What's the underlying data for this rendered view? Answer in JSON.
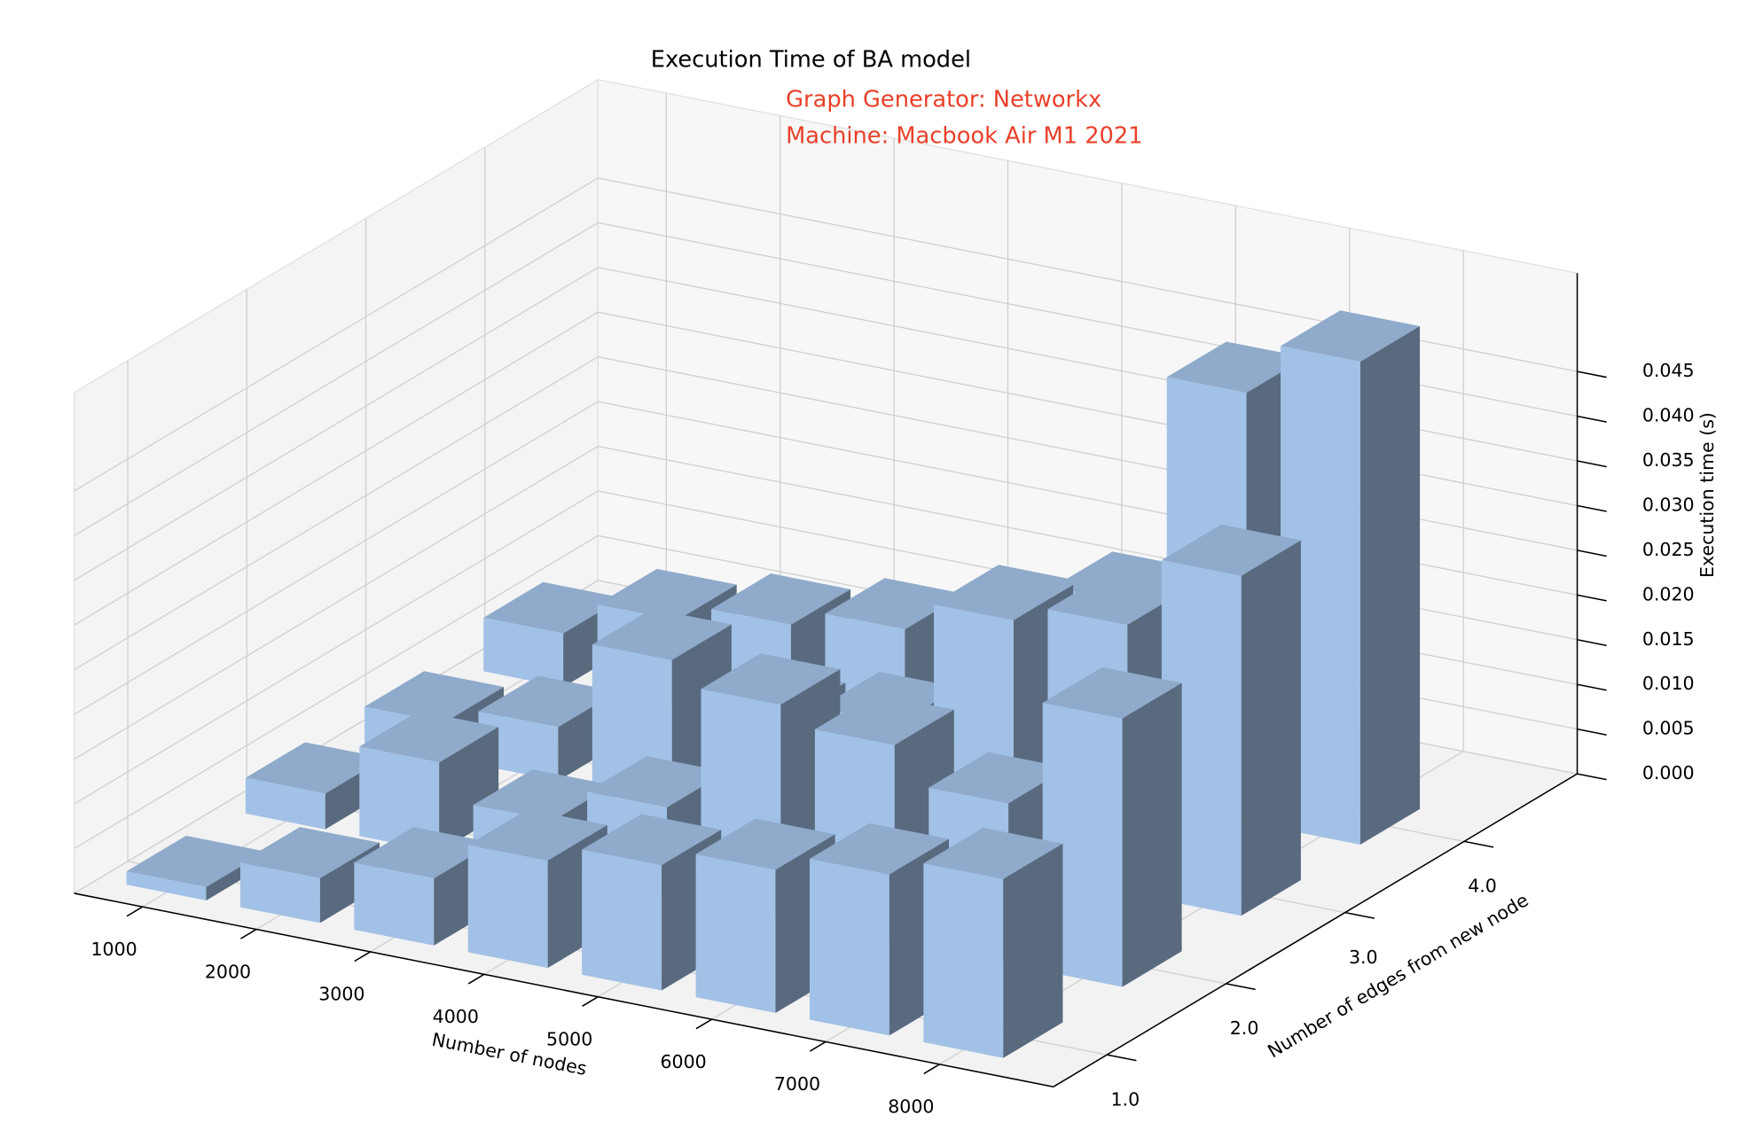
{
  "chart_data": {
    "type": "bar3d",
    "title": "Execution Time of BA model",
    "annotation": [
      "Graph Generator: Networkx",
      "Machine: Macbook Air M1 2021"
    ],
    "annotation_color": "#e8402a",
    "x_label": "Number of nodes",
    "y_label": "Number of edges from new node",
    "z_label": "Execution time (s)",
    "color": "#a2c1e6",
    "x": [
      1000,
      2000,
      3000,
      4000,
      5000,
      6000,
      7000,
      8000
    ],
    "series": [
      {
        "y": 1,
        "values": [
          0.0015,
          0.005,
          0.0075,
          0.012,
          0.014,
          0.016,
          0.018,
          0.02
        ]
      },
      {
        "y": 2,
        "values": [
          0.004,
          0.01,
          0.006,
          0.01,
          0.024,
          0.022,
          0.018,
          0.03
        ]
      },
      {
        "y": 3,
        "values": [
          0.004,
          0.006,
          0.016,
          0.012,
          0.014,
          0.028,
          0.03,
          0.038
        ]
      },
      {
        "y": 4,
        "values": [
          0.006,
          0.01,
          0.012,
          0.014,
          0.018,
          0.022,
          0.048,
          0.054
        ]
      }
    ],
    "xlim": [
      400,
      9000
    ],
    "xticks": [
      1000,
      2000,
      3000,
      4000,
      5000,
      6000,
      7000,
      8000
    ],
    "ylim": [
      0.55,
      4.95
    ],
    "yticks": [
      {
        "value": 1,
        "label": "1.0"
      },
      {
        "value": 2,
        "label": "2.0"
      },
      {
        "value": 3,
        "label": "3.0"
      },
      {
        "value": 4,
        "label": "4.0"
      }
    ],
    "zlim": [
      0,
      0.056
    ],
    "zticks": [
      {
        "value": 0,
        "label": "0.000"
      },
      {
        "value": 0.005,
        "label": "0.005"
      },
      {
        "value": 0.01,
        "label": "0.010"
      },
      {
        "value": 0.015,
        "label": "0.015"
      },
      {
        "value": 0.02,
        "label": "0.020"
      },
      {
        "value": 0.025,
        "label": "0.025"
      },
      {
        "value": 0.03,
        "label": "0.030"
      },
      {
        "value": 0.035,
        "label": "0.035"
      },
      {
        "value": 0.04,
        "label": "0.040"
      },
      {
        "value": 0.045,
        "label": "0.045"
      }
    ],
    "grid": true
  }
}
